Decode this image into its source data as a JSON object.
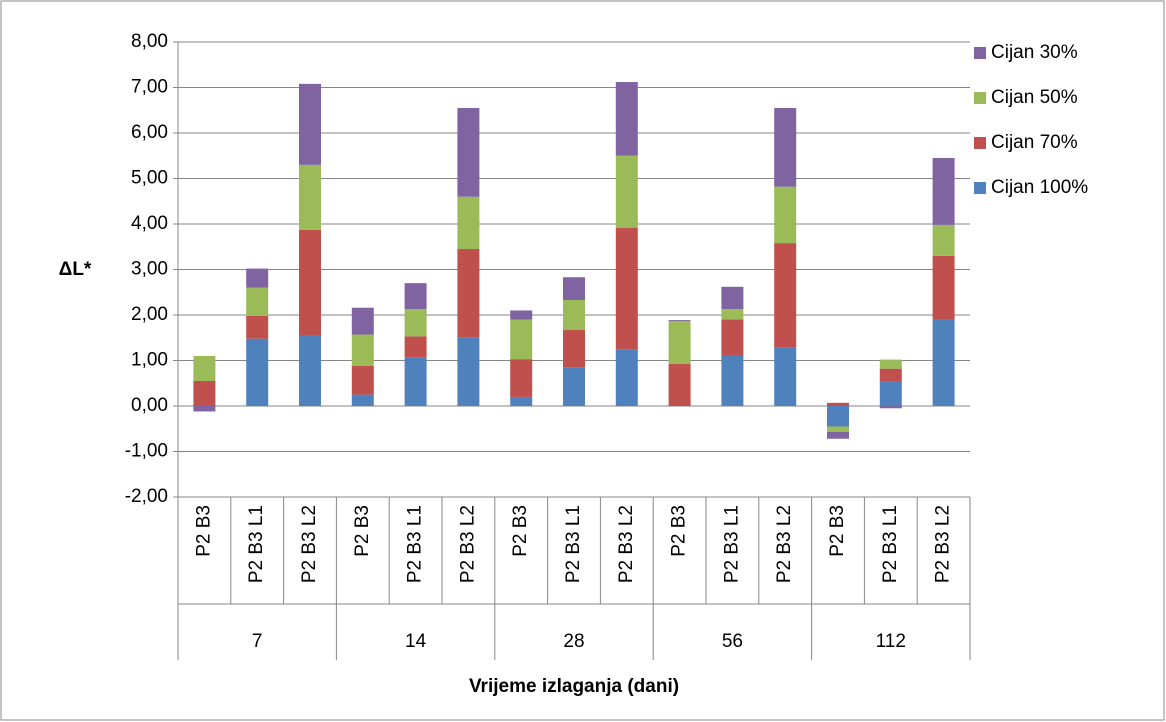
{
  "chart_data": {
    "type": "bar",
    "stacked": true,
    "categories": [
      "P2 B3",
      "P2 B3 L1",
      "P2 B3 L2",
      "P2 B3",
      "P2 B3 L1",
      "P2 B3 L2",
      "P2 B3",
      "P2 B3 L1",
      "P2 B3 L2",
      "P2 B3",
      "P2 B3 L1",
      "P2 B3 L2",
      "P2 B3",
      "P2 B3 L1",
      "P2 B3 L2"
    ],
    "groups": [
      "7",
      "14",
      "28",
      "56",
      "112"
    ],
    "x_label": "Vrijeme izlaganja (dani)",
    "y_label": "ΔL*",
    "series": [
      {
        "name": "Cijan 100%",
        "color": "#4f81bd",
        "values": [
          0,
          1.48,
          1.55,
          0.25,
          1.07,
          1.5,
          0.2,
          0.85,
          1.25,
          0,
          1.1,
          1.28,
          -0.45,
          0.53,
          1.9
        ]
      },
      {
        "name": "Cijan 70%",
        "color": "#c0504d",
        "values": [
          0.55,
          0.5,
          2.32,
          0.63,
          0.46,
          1.95,
          0.83,
          0.82,
          2.67,
          0.93,
          0.8,
          2.3,
          0.07,
          0.29,
          1.4
        ]
      },
      {
        "name": "Cijan 50%",
        "color": "#9bbb59",
        "values": [
          0.55,
          0.62,
          1.43,
          0.69,
          0.6,
          1.15,
          0.87,
          0.66,
          1.58,
          0.94,
          0.23,
          1.24,
          -0.12,
          0.2,
          0.68
        ]
      },
      {
        "name": "Cijan 30%",
        "color": "#8064a2",
        "values": [
          -0.12,
          0.42,
          1.78,
          0.59,
          0.57,
          1.95,
          0.2,
          0.5,
          1.62,
          0.02,
          0.49,
          1.73,
          -0.15,
          -0.05,
          1.47
        ]
      }
    ],
    "ylim": [
      -2,
      8
    ],
    "yticks": [
      {
        "value": -2,
        "label": "-2,00"
      },
      {
        "value": -1,
        "label": "-1,00"
      },
      {
        "value": 0,
        "label": "0,00"
      },
      {
        "value": 1,
        "label": "1,00"
      },
      {
        "value": 2,
        "label": "2,00"
      },
      {
        "value": 3,
        "label": "3,00"
      },
      {
        "value": 4,
        "label": "4,00"
      },
      {
        "value": 5,
        "label": "5,00"
      },
      {
        "value": 6,
        "label": "6,00"
      },
      {
        "value": 7,
        "label": "7,00"
      },
      {
        "value": 8,
        "label": "8,00"
      }
    ],
    "grid": true,
    "legend": "right"
  }
}
